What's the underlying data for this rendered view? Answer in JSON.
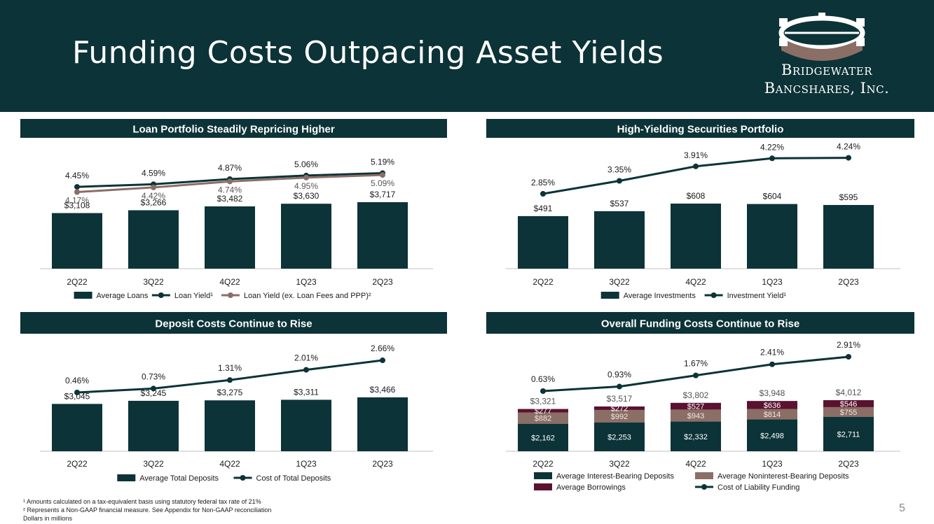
{
  "header": {
    "title": "Funding Costs Outpacing Asset Yields",
    "logo_line1": "Bridgewater",
    "logo_line2": "Bancshares, Inc."
  },
  "footnotes": {
    "note1": "¹ Amounts calculated on a tax-equivalent basis using statutory federal tax rate of 21%",
    "note2": "² Represents a Non-GAAP financial measure. See Appendix for Non-GAAP reconciliation",
    "note3": "Dollars in millions"
  },
  "page_number": "5",
  "colors": {
    "dark": "#0c3337",
    "brown": "#8b6e66",
    "maroon": "#5a1230",
    "axis": "#bfbfbf"
  },
  "chart_data": [
    {
      "type": "bar",
      "title": "Loan Portfolio Steadily Repricing Higher",
      "categories": [
        "2Q22",
        "3Q22",
        "4Q22",
        "1Q23",
        "2Q23"
      ],
      "series": [
        {
          "name": "Average Loans",
          "kind": "bar",
          "values": [
            3108,
            3266,
            3482,
            3630,
            3717
          ],
          "labels": [
            "$3,108",
            "$3,266",
            "$3,482",
            "$3,630",
            "$3,717"
          ]
        },
        {
          "name": "Loan Yield¹",
          "kind": "line",
          "values": [
            4.45,
            4.59,
            4.87,
            5.06,
            5.19
          ],
          "labels": [
            "4.45%",
            "4.59%",
            "4.87%",
            "5.06%",
            "5.19%"
          ]
        },
        {
          "name": "Loan Yield (ex. Loan Fees and PPP)²",
          "kind": "line",
          "values": [
            4.17,
            4.42,
            4.74,
            4.95,
            5.09
          ],
          "labels": [
            "4.17%",
            "4.42%",
            "4.74%",
            "4.95%",
            "5.09%"
          ]
        }
      ]
    },
    {
      "type": "bar",
      "title": "High-Yielding Securities Portfolio",
      "categories": [
        "2Q22",
        "3Q22",
        "4Q22",
        "1Q23",
        "2Q23"
      ],
      "series": [
        {
          "name": "Average Investments",
          "kind": "bar",
          "values": [
            491,
            537,
            608,
            604,
            595
          ],
          "labels": [
            "$491",
            "$537",
            "$608",
            "$604",
            "$595"
          ]
        },
        {
          "name": "Investment Yield¹",
          "kind": "line",
          "values": [
            2.85,
            3.35,
            3.91,
            4.22,
            4.24
          ],
          "labels": [
            "2.85%",
            "3.35%",
            "3.91%",
            "4.22%",
            "4.24%"
          ]
        }
      ]
    },
    {
      "type": "bar",
      "title": "Deposit Costs Continue to Rise",
      "categories": [
        "2Q22",
        "3Q22",
        "4Q22",
        "1Q23",
        "2Q23"
      ],
      "series": [
        {
          "name": "Average Total Deposits",
          "kind": "bar",
          "values": [
            3045,
            3245,
            3275,
            3311,
            3466
          ],
          "labels": [
            "$3,045",
            "$3,245",
            "$3,275",
            "$3,311",
            "$3,466"
          ]
        },
        {
          "name": "Cost of Total Deposits",
          "kind": "line",
          "values": [
            0.46,
            0.73,
            1.31,
            2.01,
            2.66
          ],
          "labels": [
            "0.46%",
            "0.73%",
            "1.31%",
            "2.01%",
            "2.66%"
          ]
        }
      ]
    },
    {
      "type": "stacked-bar",
      "title": "Overall Funding Costs Continue to Rise",
      "categories": [
        "2Q22",
        "3Q22",
        "4Q22",
        "1Q23",
        "2Q23"
      ],
      "totals": [
        3321,
        3517,
        3802,
        3948,
        4012
      ],
      "total_labels": [
        "$3,321",
        "$3,517",
        "$3,802",
        "$3,948",
        "$4,012"
      ],
      "series": [
        {
          "name": "Average Interest-Bearing Deposits",
          "kind": "bar",
          "values": [
            2162,
            2253,
            2332,
            2498,
            2711
          ],
          "labels": [
            "$2,162",
            "$2,253",
            "$2,332",
            "$2,498",
            "$2,711"
          ]
        },
        {
          "name": "Average Noninterest-Bearing Deposits",
          "kind": "bar",
          "values": [
            882,
            992,
            943,
            814,
            755
          ],
          "labels": [
            "$882",
            "$992",
            "$943",
            "$814",
            "$755"
          ]
        },
        {
          "name": "Average Borrowings",
          "kind": "bar",
          "values": [
            277,
            272,
            527,
            636,
            546
          ],
          "labels": [
            "$277",
            "$272",
            "$527",
            "$636",
            "$546"
          ]
        },
        {
          "name": "Cost of Liability Funding",
          "kind": "line",
          "values": [
            0.63,
            0.93,
            1.67,
            2.41,
            2.91
          ],
          "labels": [
            "0.63%",
            "0.93%",
            "1.67%",
            "2.41%",
            "2.91%"
          ]
        }
      ]
    }
  ]
}
